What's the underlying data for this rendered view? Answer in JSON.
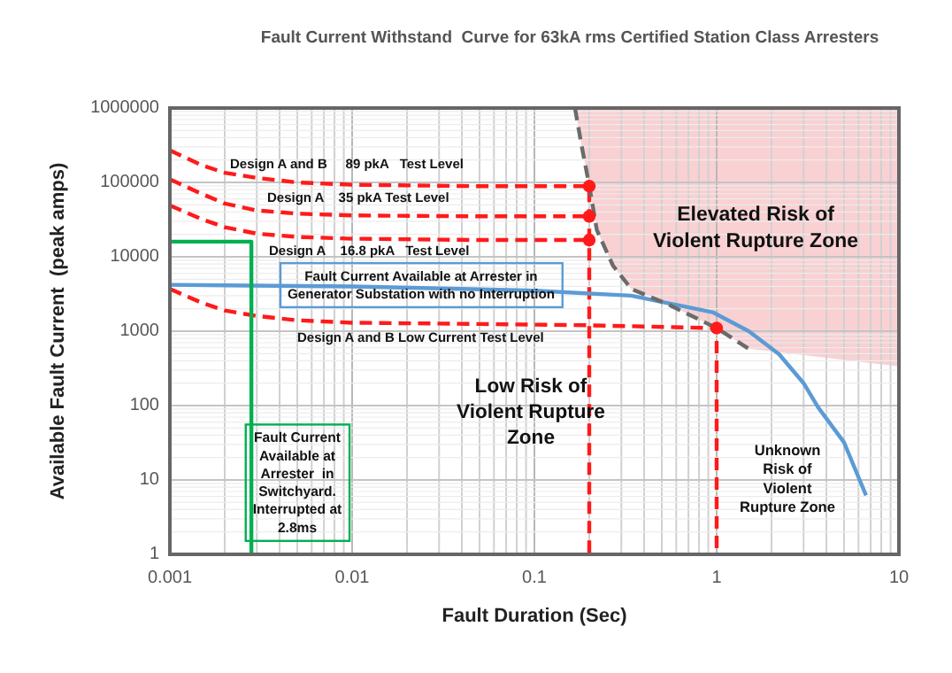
{
  "chart_data": {
    "type": "line",
    "title": "Fault Current Withstand  Curve for 63kA rms Certified Station Class Arresters",
    "xlabel": "Fault Duration (Sec)",
    "ylabel": "Available Fault Current  (peak amps)",
    "log": "xy",
    "grid": true,
    "xlim": [
      0.001,
      10
    ],
    "ylim": [
      1,
      1000000
    ],
    "xticks": [
      0.001,
      0.01,
      0.1,
      1,
      10
    ],
    "yticks": [
      1,
      10,
      100,
      1000,
      10000,
      100000,
      1000000
    ],
    "series": [
      {
        "color": "#ff1a1a",
        "line_style": "dashed",
        "x": [
          0.001,
          0.0015,
          0.002,
          0.003,
          0.005,
          0.01,
          0.05,
          0.2,
          0.2
        ],
        "values": [
          270000,
          170000,
          135000,
          115000,
          100000,
          93000,
          89000,
          89000,
          1
        ]
      },
      {
        "color": "#ff1a1a",
        "line_style": "dashed",
        "x": [
          0.001,
          0.0015,
          0.002,
          0.003,
          0.005,
          0.01,
          0.05,
          0.2
        ],
        "values": [
          110000,
          70000,
          52000,
          42000,
          38000,
          36000,
          35000,
          35000
        ]
      },
      {
        "color": "#ff1a1a",
        "line_style": "dashed",
        "x": [
          0.001,
          0.0015,
          0.002,
          0.003,
          0.005,
          0.01,
          0.05,
          0.2
        ],
        "values": [
          49000,
          32000,
          25000,
          20500,
          18500,
          17500,
          16800,
          16800
        ]
      },
      {
        "color": "#ff1a1a",
        "line_style": "dashed",
        "x": [
          0.001,
          0.0015,
          0.002,
          0.003,
          0.005,
          0.01,
          0.05,
          0.2,
          1,
          1
        ],
        "values": [
          3700,
          2400,
          1900,
          1600,
          1400,
          1300,
          1250,
          1200,
          1100,
          1
        ]
      },
      {
        "color": "#5b9bd5",
        "line_style": "solid",
        "x": [
          0.001,
          0.01,
          0.04,
          0.1,
          0.34,
          0.95,
          1.5,
          2.2,
          3,
          3.6,
          5,
          6.6
        ],
        "values": [
          4200,
          4000,
          3700,
          3500,
          3000,
          1800,
          1000,
          490,
          200,
          95,
          32,
          6.2
        ]
      },
      {
        "color": "#6b6b6b",
        "line_style": "dashed",
        "x": [
          0.167,
          0.18,
          0.2,
          0.22,
          0.27,
          0.34,
          0.54,
          1,
          1.5
        ],
        "values": [
          1000000,
          350000,
          90000,
          23000,
          7600,
          3700,
          2300,
          1100,
          580
        ]
      },
      {
        "color": "#00b050",
        "line_style": "solid",
        "x": [
          0.001,
          0.0028,
          0.0028
        ],
        "values": [
          16000,
          16000,
          1
        ]
      },
      {
        "type": "scatter",
        "color": "#ff1a1a",
        "marker": "circle",
        "x": [
          0.2,
          0.2,
          0.2,
          1
        ],
        "values": [
          89000,
          35000,
          16800,
          1100
        ]
      }
    ],
    "annotations": [
      "Design A and B     89 pkA   Test Level",
      "Design A    35 pkA Test Level",
      "Design A    16.8 pkA   Test Level",
      "Fault Current Available at Arrester in\nGenerator Substation with no Interruption",
      "Design A and B Low Current Test Level",
      "Low Risk of\nViolent Rupture\nZone",
      "Elevated Risk of\nViolent Rupture Zone",
      "Unknown\nRisk of\nViolent\nRupture Zone",
      "Fault Current\nAvailable at\nArrester  in\nSwitchyard.\nInterrupted at\n2.8ms"
    ]
  }
}
